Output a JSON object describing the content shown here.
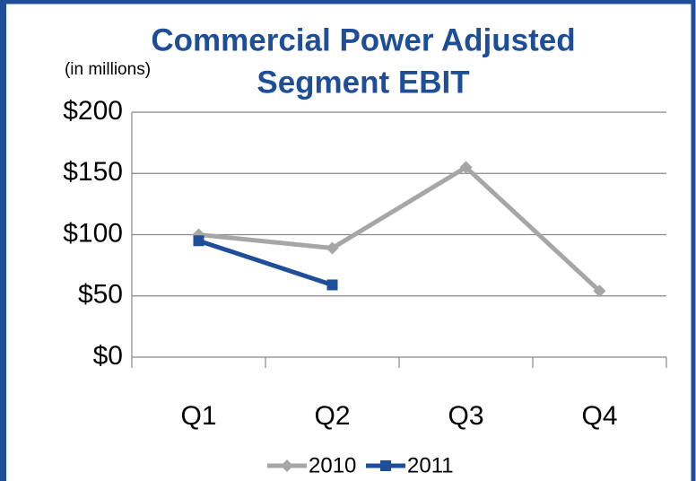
{
  "chart_data": {
    "type": "line",
    "title": [
      "Commercial Power Adjusted",
      "Segment EBIT"
    ],
    "annotation": "(in millions)",
    "categories": [
      "Q1",
      "Q2",
      "Q3",
      "Q4"
    ],
    "series": [
      {
        "name": "2010",
        "color": "#a6a6a6",
        "marker": "diamond",
        "values": [
          100,
          89,
          155,
          54
        ]
      },
      {
        "name": "2011",
        "color": "#1f4e99",
        "marker": "square",
        "values": [
          95,
          59,
          null,
          null
        ]
      }
    ],
    "ylim": [
      0,
      200
    ],
    "yticks": [
      {
        "value": 0,
        "label": "$0"
      },
      {
        "value": 50,
        "label": "$50"
      },
      {
        "value": 100,
        "label": "$100"
      },
      {
        "value": 150,
        "label": "$150"
      },
      {
        "value": 200,
        "label": "$200"
      }
    ],
    "grid": true,
    "legend": "bottom"
  }
}
